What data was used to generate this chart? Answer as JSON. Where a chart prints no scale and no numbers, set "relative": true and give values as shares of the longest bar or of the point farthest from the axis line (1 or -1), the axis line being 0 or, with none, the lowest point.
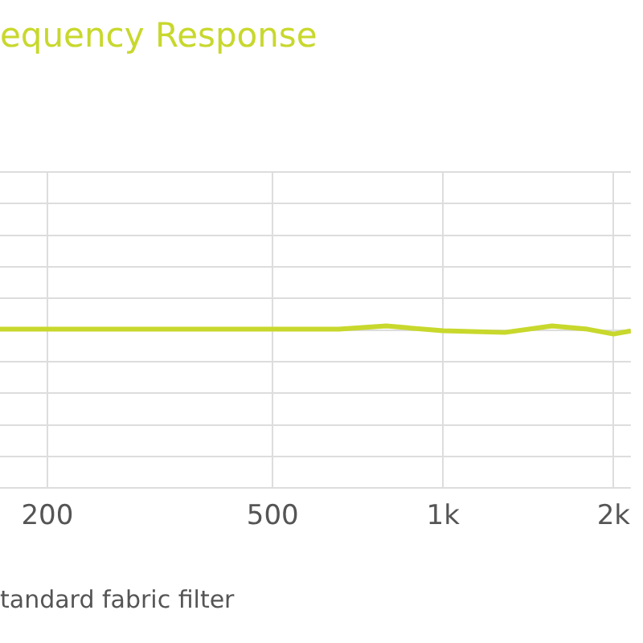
{
  "chart_data": {
    "type": "line",
    "title": "equency Response",
    "relative": true,
    "log": "x",
    "x": [
      165,
      313,
      500,
      655,
      794,
      1000,
      1285,
      1557,
      1800,
      2000,
      2146
    ],
    "series": [
      {
        "color": "#c8d82c",
        "values": [
          0.98,
          0.98,
          0.98,
          0.98,
          1,
          0.97,
          0.96,
          1,
          0.98,
          0.95,
          0.97
        ]
      }
    ],
    "xlim": [
      165,
      2146
    ],
    "xticks": [
      200,
      500,
      {
        "value": 1000,
        "label": "1k"
      },
      {
        "value": 2000,
        "label": "2k"
      }
    ],
    "grid": true,
    "legend": false,
    "marker": "none",
    "line_style": "solid",
    "tick_labels": "x",
    "annotations": [
      "tandard fabric filter"
    ]
  }
}
